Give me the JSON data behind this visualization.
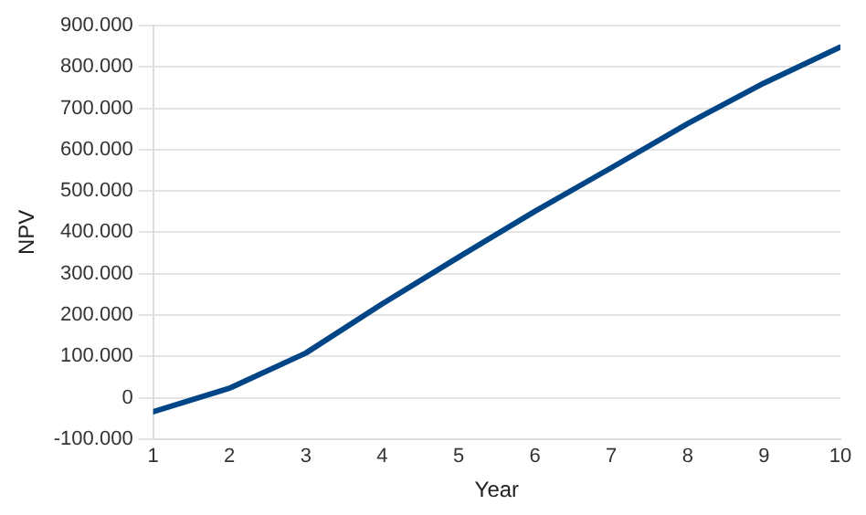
{
  "chart_data": {
    "type": "line",
    "xlabel": "Year",
    "ylabel": "NPV",
    "x": [
      1,
      2,
      3,
      4,
      5,
      6,
      7,
      8,
      9,
      10
    ],
    "series": [
      {
        "color": "#004586",
        "values": [
          -34000,
          23000,
          108000,
          227000,
          340000,
          451000,
          556000,
          663000,
          761000,
          848000
        ]
      }
    ],
    "xlim": [
      1,
      10
    ],
    "xticks": [
      1,
      2,
      3,
      4,
      5,
      6,
      7,
      8,
      9,
      10
    ],
    "ylim": [
      -100000,
      900000
    ],
    "yticks": [
      {
        "value": -100000,
        "label": "-100.000"
      },
      {
        "value": 0,
        "label": "0"
      },
      {
        "value": 100000,
        "label": "100.000"
      },
      {
        "value": 200000,
        "label": "200.000"
      },
      {
        "value": 300000,
        "label": "300.000"
      },
      {
        "value": 400000,
        "label": "400.000"
      },
      {
        "value": 500000,
        "label": "500.000"
      },
      {
        "value": 600000,
        "label": "600.000"
      },
      {
        "value": 700000,
        "label": "700.000"
      },
      {
        "value": 800000,
        "label": "800.000"
      },
      {
        "value": 900000,
        "label": "900.000"
      }
    ],
    "grid": "y",
    "legend": false,
    "marker": "none",
    "line_style": "solid"
  }
}
